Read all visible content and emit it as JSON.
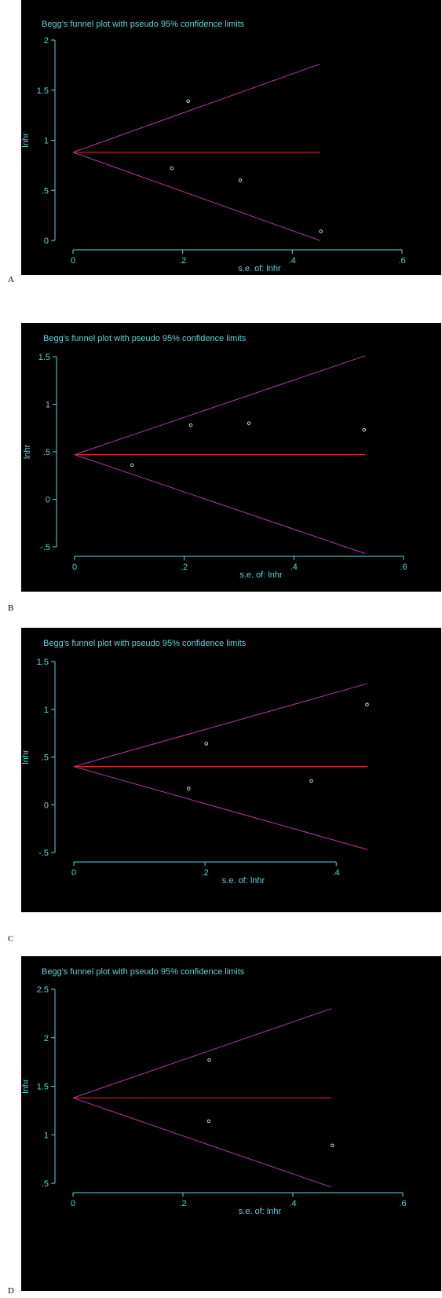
{
  "chart_data": [
    {
      "type": "scatter",
      "panel_label": "A",
      "title": "Begg's funnel plot with pseudo 95% confidence limits",
      "xlabel": "s.e. of: lnhr",
      "ylabel": "lnhr",
      "xlim": [
        0,
        0.6
      ],
      "ylim": [
        0,
        2
      ],
      "xticks": [
        "0",
        ".2",
        ".4",
        ".6"
      ],
      "yticks": [
        "0",
        ".5",
        "1",
        "1.5",
        "2"
      ],
      "center": 0.88,
      "funnel_max_se": 0.45,
      "funnel_upper_end": 1.76,
      "funnel_lower_end": 0.0,
      "points": [
        {
          "x": 0.18,
          "y": 0.72
        },
        {
          "x": 0.21,
          "y": 1.39
        },
        {
          "x": 0.305,
          "y": 0.6
        },
        {
          "x": 0.452,
          "y": 0.09
        }
      ]
    },
    {
      "type": "scatter",
      "panel_label": "B",
      "title": "Begg's funnel plot with pseudo 95% confidence limits",
      "xlabel": "s.e. of: lnhr",
      "ylabel": "lnhr",
      "xlim": [
        0,
        0.6
      ],
      "ylim": [
        -0.5,
        1.5
      ],
      "xticks": [
        "0",
        ".2",
        ".4",
        ".6"
      ],
      "yticks": [
        "-.5",
        "0",
        ".5",
        "1",
        "1.5"
      ],
      "center": 0.47,
      "funnel_max_se": 0.53,
      "funnel_upper_end": 1.51,
      "funnel_lower_end": -0.57,
      "points": [
        {
          "x": 0.105,
          "y": 0.36
        },
        {
          "x": 0.212,
          "y": 0.78
        },
        {
          "x": 0.318,
          "y": 0.8
        },
        {
          "x": 0.528,
          "y": 0.73
        }
      ]
    },
    {
      "type": "scatter",
      "panel_label": "C",
      "title": "Begg's funnel plot with pseudo 95% confidence limits",
      "xlabel": "s.e. of: lnhr",
      "ylabel": "lnhr",
      "xlim": [
        0,
        0.45
      ],
      "ylim": [
        -0.5,
        1.5
      ],
      "xticks": [
        "0",
        ".2",
        ".4"
      ],
      "yticks": [
        "-.5",
        "0",
        ".5",
        "1",
        "1.5"
      ],
      "center": 0.4,
      "funnel_max_se": 0.448,
      "funnel_upper_end": 1.27,
      "funnel_lower_end": -0.47,
      "points": [
        {
          "x": 0.175,
          "y": 0.17
        },
        {
          "x": 0.202,
          "y": 0.64
        },
        {
          "x": 0.362,
          "y": 0.25
        },
        {
          "x": 0.447,
          "y": 1.05
        }
      ]
    },
    {
      "type": "scatter",
      "panel_label": "D",
      "title": "Begg's funnel plot with pseudo 95% confidence limits",
      "xlabel": "s.e. of: lnhr",
      "ylabel": "lnhr",
      "xlim": [
        0,
        0.6
      ],
      "ylim": [
        0.5,
        2.5
      ],
      "xticks": [
        "0",
        ".2",
        ".4",
        ".6"
      ],
      "yticks": [
        ".5",
        "1",
        "1.5",
        "2",
        "2.5"
      ],
      "center": 1.38,
      "funnel_max_se": 0.47,
      "funnel_upper_end": 2.3,
      "funnel_lower_end": 0.46,
      "points": [
        {
          "x": 0.247,
          "y": 1.14
        },
        {
          "x": 0.248,
          "y": 1.77
        },
        {
          "x": 0.472,
          "y": 0.89
        }
      ]
    }
  ],
  "colors": {
    "background": "#000000",
    "text": "#5fd3d8",
    "axis": "#5fd3d8",
    "center_line": "#d0283a",
    "funnel_line": "#b43aa8",
    "point": "#f2ecd8"
  }
}
